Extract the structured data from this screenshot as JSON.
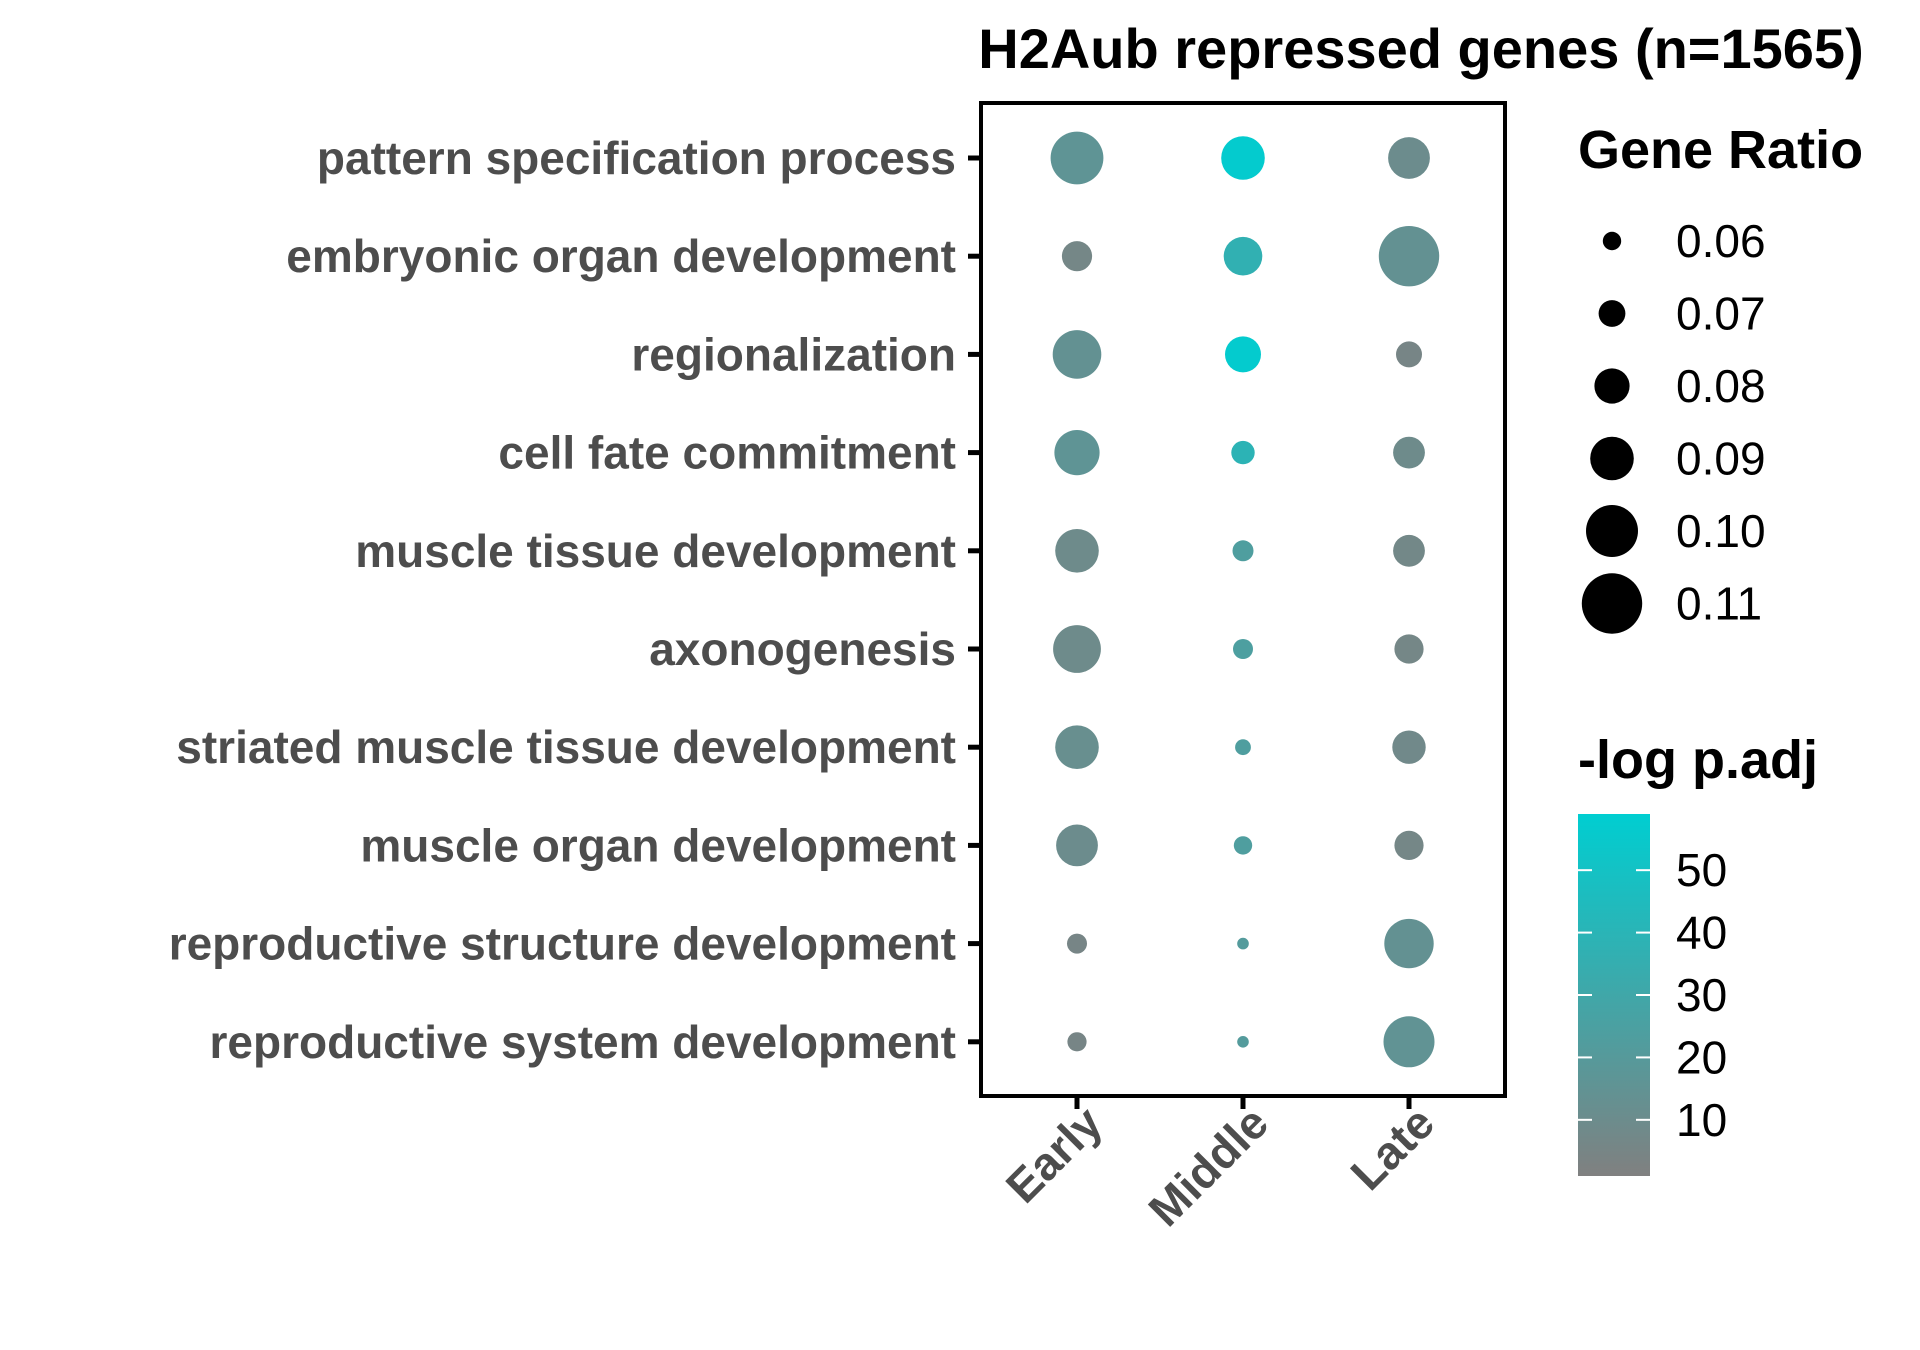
{
  "chart_data": {
    "type": "scatter",
    "title": "H2Aub repressed genes (n=1565)",
    "xlabel": "",
    "ylabel": "",
    "categories": [
      "Early",
      "Middle",
      "Late"
    ],
    "terms": [
      "pattern specification process",
      "embryonic organ development",
      "regionalization",
      "cell fate commitment",
      "muscle tissue development",
      "axonogenesis",
      "striated muscle tissue development",
      "muscle organ development",
      "reproductive structure development",
      "reproductive system development"
    ],
    "gene_ratio": [
      [
        0.101,
        0.09,
        0.088
      ],
      [
        0.074,
        0.084,
        0.11
      ],
      [
        0.096,
        0.081,
        0.069
      ],
      [
        0.092,
        0.066,
        0.076
      ],
      [
        0.09,
        0.063,
        0.076
      ],
      [
        0.095,
        0.062,
        0.073
      ],
      [
        0.09,
        0.057,
        0.078
      ],
      [
        0.088,
        0.06,
        0.073
      ],
      [
        0.062,
        0.052,
        0.097
      ],
      [
        0.061,
        0.052,
        0.099
      ]
    ],
    "neg_log_padj": [
      [
        16,
        57,
        10
      ],
      [
        6,
        37,
        14
      ],
      [
        14,
        57,
        5
      ],
      [
        16,
        39,
        9
      ],
      [
        9,
        23,
        7
      ],
      [
        9,
        24,
        6
      ],
      [
        12,
        23,
        8
      ],
      [
        10,
        23,
        6
      ],
      [
        5,
        21,
        14
      ],
      [
        5,
        21,
        15
      ]
    ],
    "size_legend": {
      "title": "Gene Ratio",
      "values": [
        0.06,
        0.07,
        0.08,
        0.09,
        0.1,
        0.11
      ],
      "labels": [
        "0.06",
        "0.07",
        "0.08",
        "0.09",
        "0.10",
        "0.11"
      ]
    },
    "color_legend": {
      "title": "-log p.adj",
      "range": [
        1,
        59
      ],
      "ticks": [
        10,
        20,
        30,
        40,
        50
      ],
      "tick_labels": [
        "10",
        "20",
        "30",
        "40",
        "50"
      ],
      "low_color": "#808080",
      "high_color": "#00ced1"
    },
    "grid": false,
    "legend_placement": "right"
  }
}
